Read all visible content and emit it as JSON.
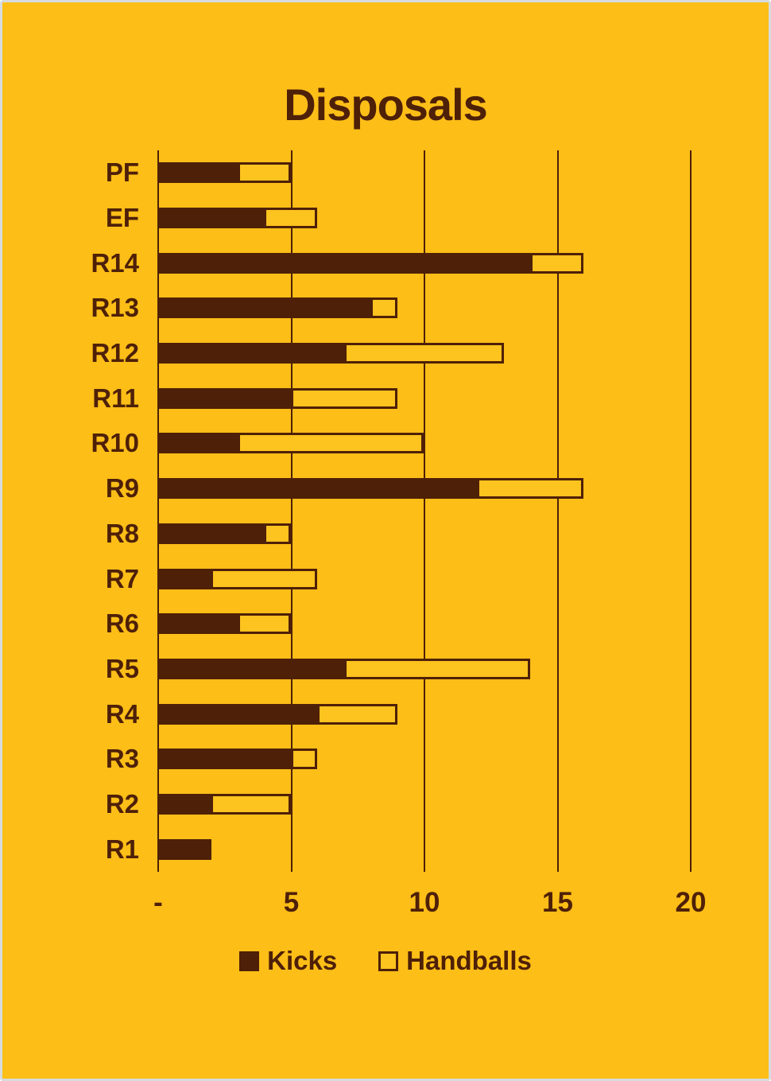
{
  "title": "Disposals",
  "legend": {
    "kicks_label": "Kicks",
    "handballs_label": "Handballs"
  },
  "colors": {
    "background": "#FCBE17",
    "dark_brown": "#4E2008",
    "handball_fill": "#FDC31E",
    "frame_gray": "#D7DBDD"
  },
  "chart_data": {
    "type": "bar",
    "orientation": "horizontal",
    "stacked": true,
    "title": "Disposals",
    "categories": [
      "PF",
      "EF",
      "R14",
      "R13",
      "R12",
      "R11",
      "R10",
      "R9",
      "R8",
      "R7",
      "R6",
      "R5",
      "R4",
      "R3",
      "R2",
      "R1"
    ],
    "series": [
      {
        "name": "Kicks",
        "values": [
          3,
          4,
          14,
          8,
          7,
          5,
          3,
          12,
          4,
          2,
          3,
          7,
          6,
          5,
          2,
          2
        ]
      },
      {
        "name": "Handballs",
        "values": [
          2,
          2,
          2,
          1,
          6,
          4,
          7,
          4,
          1,
          4,
          2,
          7,
          3,
          1,
          3,
          0
        ]
      }
    ],
    "totals": [
      5,
      6,
      16,
      9,
      13,
      9,
      10,
      16,
      5,
      6,
      5,
      14,
      9,
      6,
      5,
      2
    ],
    "xlim": [
      0,
      20
    ],
    "xticks": [
      {
        "value": 0,
        "label": "-"
      },
      {
        "value": 5,
        "label": "5"
      },
      {
        "value": 10,
        "label": "10"
      },
      {
        "value": 15,
        "label": "15"
      },
      {
        "value": 20,
        "label": "20"
      }
    ],
    "grid": "vertical-gridlines-on",
    "legend_position": "bottom"
  }
}
